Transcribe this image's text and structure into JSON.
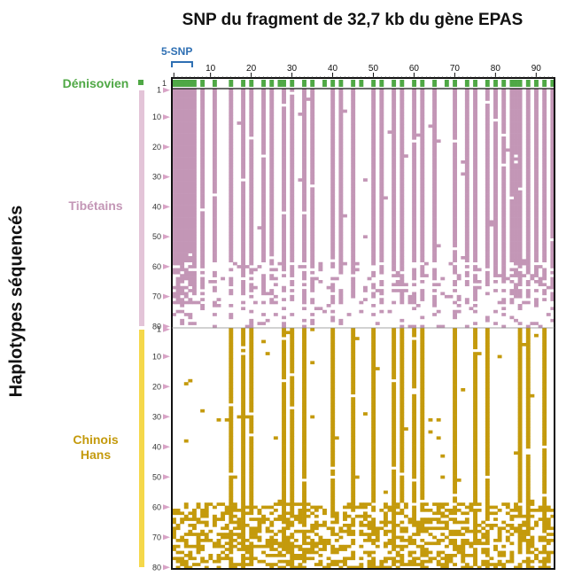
{
  "title": "SNP du fragment de 32,7 kb du gène EPAS",
  "ylabel": "Haplotypes séquencés",
  "annotation_5snp": "5-SNP",
  "groups": {
    "denisovan": "Dénisovien",
    "tibetan": "Tibétains",
    "han_line1": "Chinois",
    "han_line2": "Hans"
  },
  "colors": {
    "denisovan": "#4fa845",
    "tibetan": "#c396b6",
    "tibetan_bar": "#e3c4d8",
    "han": "#c49a0c",
    "han_bar": "#f5d84a",
    "annotation": "#2e6fb3"
  },
  "chart_data": {
    "type": "heatmap",
    "title": "SNP du fragment de 32,7 kb du gène EPAS",
    "xlabel": "",
    "ylabel": "Haplotypes séquencés",
    "x_ticks": [
      1,
      10,
      20,
      30,
      40,
      50,
      60,
      70,
      80,
      90
    ],
    "y_ticks_tibetan": [
      1,
      10,
      20,
      30,
      40,
      50,
      60,
      70,
      80
    ],
    "y_ticks_han": [
      1,
      10,
      20,
      30,
      40,
      50,
      60,
      70,
      80
    ],
    "n_snp": 94,
    "n_tibetan": 80,
    "n_han": 80,
    "snp_range_5snp": [
      1,
      5
    ],
    "denisovan_allele_snps": [
      1,
      2,
      3,
      4,
      5,
      6,
      8,
      11,
      15,
      18,
      20,
      23,
      25,
      27,
      28,
      30,
      33,
      35,
      38,
      40,
      42,
      45,
      47,
      50,
      52,
      55,
      57,
      60,
      62,
      65,
      68,
      70,
      73,
      75,
      78,
      80,
      82,
      84,
      85,
      86,
      88,
      90,
      92,
      94
    ],
    "tibetan_common_snps": [
      1,
      2,
      3,
      4,
      5,
      6,
      8,
      11,
      15,
      18,
      20,
      23,
      25,
      28,
      30,
      33,
      35,
      40,
      42,
      45,
      50,
      52,
      55,
      57,
      60,
      62,
      65,
      70,
      73,
      75,
      78,
      80,
      82,
      84,
      85,
      86,
      88,
      90,
      92,
      94
    ],
    "han_common_snps": [
      15,
      18,
      20,
      28,
      30,
      33,
      40,
      45,
      50,
      55,
      57,
      60,
      62,
      70,
      75,
      78,
      86,
      88,
      92
    ]
  }
}
